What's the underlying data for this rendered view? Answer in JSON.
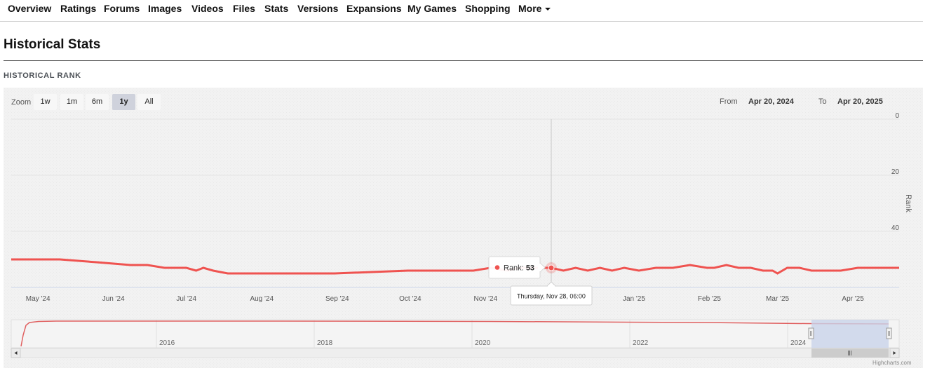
{
  "nav": {
    "items": [
      "Overview",
      "Ratings",
      "Forums",
      "Images",
      "Videos",
      "Files",
      "Stats",
      "Versions",
      "Expansions",
      "My Games",
      "Shopping"
    ],
    "more_label": "More"
  },
  "page": {
    "title": "Historical Stats",
    "section_label": "HISTORICAL RANK"
  },
  "toolbar": {
    "zoom_label": "Zoom",
    "zoom_buttons": [
      "1w",
      "1m",
      "6m",
      "1y",
      "All"
    ],
    "active_zoom": "1y",
    "from_label": "From",
    "from_value": "Apr 20, 2024",
    "to_label": "To",
    "to_value": "Apr 20, 2025"
  },
  "chart_data": {
    "type": "line",
    "ylabel": "Rank",
    "ylim": [
      0,
      60
    ],
    "yticks": [
      0,
      20,
      40
    ],
    "y_reversed": true,
    "grid": true,
    "x_tick_labels": [
      "May '24",
      "Jun '24",
      "Jul '24",
      "Aug '24",
      "Sep '24",
      "Oct '24",
      "Nov '24",
      "Dec '24",
      "Jan '25",
      "Feb '25",
      "Mar '25",
      "Apr '25"
    ],
    "series": [
      {
        "name": "Rank",
        "color": "#ef5350",
        "x": [
          "2024-04-20",
          "2024-05-10",
          "2024-05-25",
          "2024-06-08",
          "2024-06-15",
          "2024-06-22",
          "2024-07-01",
          "2024-07-05",
          "2024-07-08",
          "2024-07-12",
          "2024-07-18",
          "2024-08-15",
          "2024-08-31",
          "2024-09-30",
          "2024-10-27",
          "2024-11-03",
          "2024-11-10",
          "2024-11-15",
          "2024-11-20",
          "2024-11-28",
          "2024-12-03",
          "2024-12-08",
          "2024-12-13",
          "2024-12-18",
          "2024-12-23",
          "2024-12-28",
          "2025-01-03",
          "2025-01-10",
          "2025-01-17",
          "2025-01-24",
          "2025-01-31",
          "2025-02-03",
          "2025-02-08",
          "2025-02-13",
          "2025-02-18",
          "2025-02-23",
          "2025-02-27",
          "2025-03-01",
          "2025-03-05",
          "2025-03-10",
          "2025-03-15",
          "2025-03-20",
          "2025-03-27",
          "2025-04-03",
          "2025-04-10",
          "2025-04-20"
        ],
        "values": [
          50,
          50,
          51,
          52,
          52,
          53,
          53,
          54,
          53,
          54,
          55,
          55,
          55,
          54,
          54,
          53,
          54,
          53,
          53,
          53,
          54,
          53,
          54,
          53,
          54,
          53,
          54,
          53,
          53,
          52,
          53,
          53,
          52,
          53,
          53,
          54,
          54,
          55,
          53,
          53,
          54,
          54,
          54,
          53,
          53,
          53
        ]
      }
    ],
    "tooltip": {
      "label": "Rank",
      "value": "53",
      "date": "Thursday, Nov 28, 06:00"
    },
    "navigator": {
      "x_tick_labels": [
        "2016",
        "2018",
        "2020",
        "2022",
        "2024"
      ],
      "selected_range": [
        "2024-04-20",
        "2025-04-20"
      ]
    }
  },
  "credit": "Highcharts.com"
}
